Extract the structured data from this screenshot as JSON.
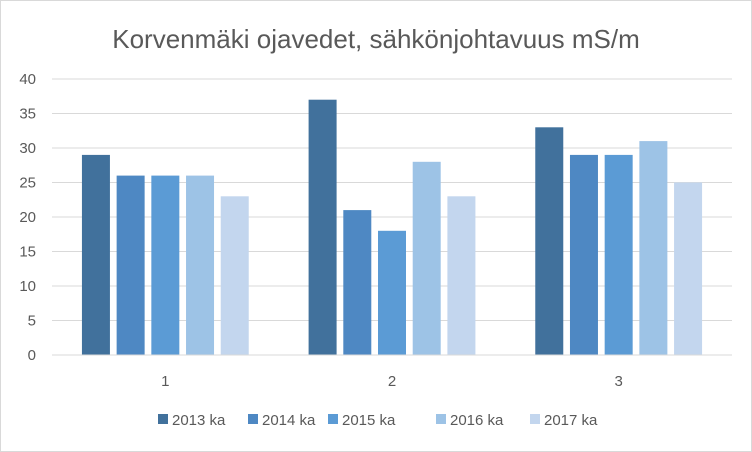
{
  "chart_data": {
    "type": "bar",
    "title": "Korvenmäki ojavedet, sähkönjohtavuus mS/m",
    "xlabel": "",
    "ylabel": "",
    "categories": [
      "1",
      "2",
      "3"
    ],
    "ylim": [
      0,
      40
    ],
    "yticks": [
      0,
      5,
      10,
      15,
      20,
      25,
      30,
      35,
      40
    ],
    "grid": true,
    "legend_position": "bottom",
    "series": [
      {
        "name": "2013 ka",
        "values": [
          29,
          37,
          33
        ],
        "color": "#41719C"
      },
      {
        "name": "2014 ka",
        "values": [
          26,
          21,
          29
        ],
        "color": "#4E88C3"
      },
      {
        "name": "2015 ka",
        "values": [
          26,
          18,
          29
        ],
        "color": "#5B9BD5"
      },
      {
        "name": "2016 ka",
        "values": [
          26,
          28,
          31
        ],
        "color": "#9DC3E6"
      },
      {
        "name": "2017 ka",
        "values": [
          23,
          23,
          25
        ],
        "color": "#C3D6EE"
      }
    ]
  }
}
